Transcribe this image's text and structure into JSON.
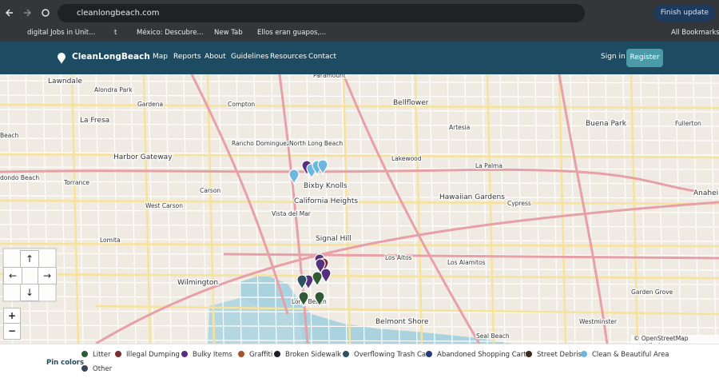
{
  "browser": {
    "url": "cleanlongbeach.com",
    "update_button": "Finish update",
    "bookmarks": [
      "digital Jobs in Unit...",
      "t",
      "México: Descubre...",
      "New Tab",
      "Ellos eran guapos,..."
    ],
    "all_bookmarks": "All Bookmarks"
  },
  "nav": {
    "brand": "CleanLongBeach",
    "links": [
      "Map",
      "Reports",
      "About",
      "Guidelines",
      "Resources",
      "Contact"
    ],
    "sign_in": "Sign in",
    "register": "Register"
  },
  "map": {
    "labels": [
      "Lawndale",
      "Alondra Park",
      "Gardena",
      "La Fresa",
      "Compton",
      "Paramount",
      "Bellflower",
      "Rancho Dominguez",
      "North Long Beach",
      "Harbor Gateway",
      "Torrance",
      "Carson",
      "Bixby Knolls",
      "Lakewood",
      "Artesia",
      "Buena Park",
      "Fullerton",
      "La Palma",
      "Hawaiian Gardens",
      "Cypress",
      "West Carson",
      "California Heights",
      "Vista del Mar",
      "Lomita",
      "Signal Hill",
      "Los Altos",
      "Los Alamitos",
      "Wilmington",
      "Long Beach",
      "Garden Grove",
      "Belmont Shore",
      "Westminster",
      "Seal Beach",
      "Anaheim",
      "dondo Beach",
      "Beach"
    ],
    "attribution": "© OpenStreetMap contributors",
    "zoom_in": "+",
    "zoom_out": "−",
    "pan": [
      "↑",
      "←",
      "→",
      "↓"
    ]
  },
  "legend": {
    "title": "Pin colors",
    "items": [
      {
        "name": "Litter",
        "color": "#2e5a36"
      },
      {
        "name": "Illegal Dumping",
        "color": "#7b2b2b"
      },
      {
        "name": "Bulky Items",
        "color": "#55307f"
      },
      {
        "name": "Graffiti",
        "color": "#a4532b"
      },
      {
        "name": "Broken Sidewalk",
        "color": "#1d1d2b"
      },
      {
        "name": "Overflowing Trash Can",
        "color": "#2e5160"
      },
      {
        "name": "Abandoned Shopping Cart",
        "color": "#283a7c"
      },
      {
        "name": "Street Debris",
        "color": "#3b2a1d"
      },
      {
        "name": "Clean & Beautiful Area",
        "color": "#6cb6e0"
      },
      {
        "name": "Other",
        "color": "#3a4557"
      }
    ]
  }
}
